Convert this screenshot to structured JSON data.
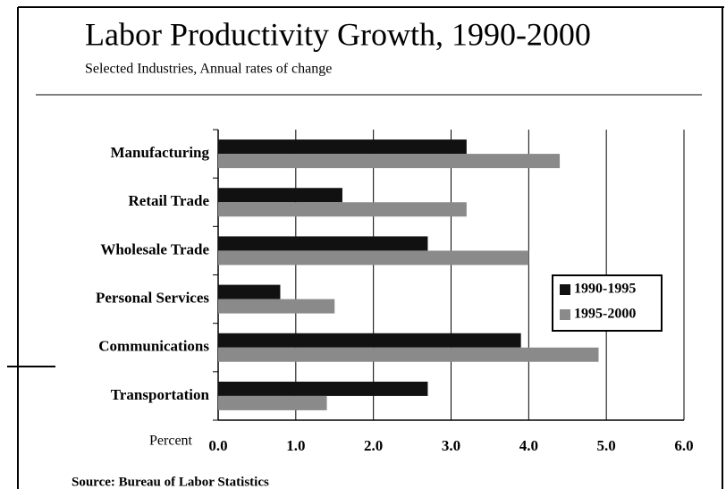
{
  "chart_data": {
    "type": "bar",
    "orientation": "horizontal",
    "title": "Labor Productivity Growth, 1990-2000",
    "subtitle": "Selected Industries, Annual rates of change",
    "x_label": "Percent",
    "annotation": "Source:  Bureau of Labor Statistics",
    "categories": [
      "Manufacturing",
      "Retail Trade",
      "Wholesale Trade",
      "Personal Services",
      "Communications",
      "Transportation"
    ],
    "series": [
      {
        "name": "1990-1995",
        "color": "#111111",
        "values": [
          3.2,
          1.6,
          2.7,
          0.8,
          3.9,
          2.7
        ]
      },
      {
        "name": "1995-2000",
        "color": "#8a8a8a",
        "values": [
          4.4,
          3.2,
          4.0,
          1.5,
          4.9,
          1.4
        ]
      }
    ],
    "xlim": [
      0,
      6
    ],
    "xticks": [
      {
        "value": 0,
        "label": "0.0"
      },
      {
        "value": 1,
        "label": "1.0"
      },
      {
        "value": 2,
        "label": "2.0"
      },
      {
        "value": 3,
        "label": "3.0"
      },
      {
        "value": 4,
        "label": "4.0"
      },
      {
        "value": 5,
        "label": "5.0"
      },
      {
        "value": 6,
        "label": "6.0"
      }
    ],
    "grid": true,
    "legend": "right"
  }
}
